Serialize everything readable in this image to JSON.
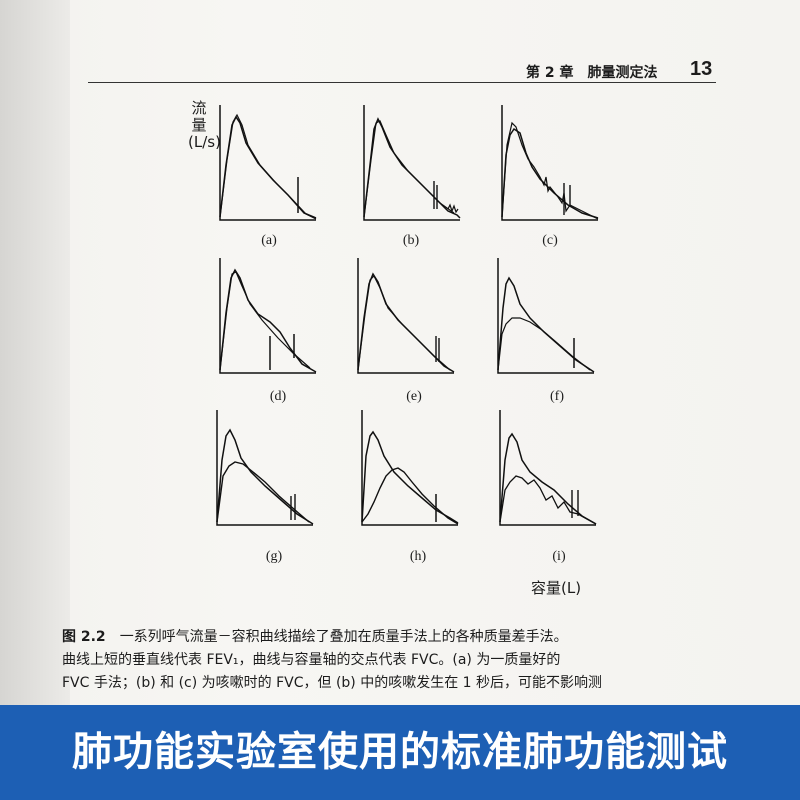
{
  "header": {
    "chapter": "第 2 章　肺量测定法",
    "page_number": "13"
  },
  "figure": {
    "y_axis_label": "流量(L/s)",
    "x_axis_label": "容量(L)",
    "panels": [
      {
        "label": "(a)"
      },
      {
        "label": "(b)"
      },
      {
        "label": "(c)"
      },
      {
        "label": "(d)"
      },
      {
        "label": "(e)"
      },
      {
        "label": "(f)"
      },
      {
        "label": "(g)"
      },
      {
        "label": "(h)"
      },
      {
        "label": "(i)"
      }
    ]
  },
  "caption": {
    "fig_id": "图 2.2",
    "line1": "一系列呼气流量－容积曲线描绘了叠加在质量手法上的各种质量差手法。",
    "line2": "曲线上短的垂直线代表 FEV₁，曲线与容量轴的交点代表 FVC。(a) 为一质量好的",
    "line3": "FVC 手法；(b) 和 (c) 为咳嗽时的 FVC，但 (b) 中的咳嗽发生在 1 秒后，可能不影响测"
  },
  "banner": {
    "text": "肺功能实验室使用的标准肺功能测试",
    "color": "#1d5fb4"
  }
}
